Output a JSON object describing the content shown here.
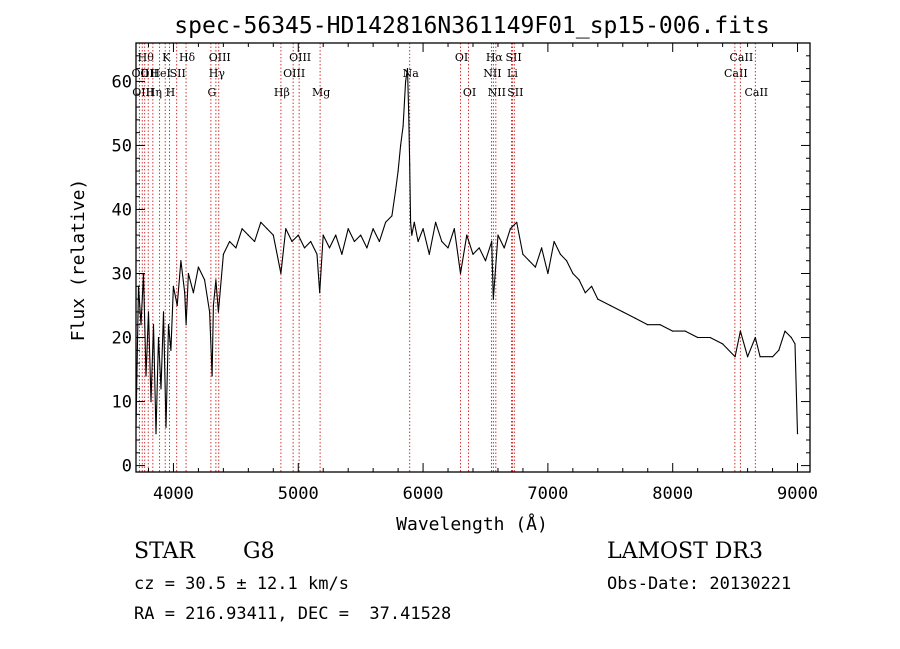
{
  "chart_data": {
    "type": "line",
    "title": "spec-56345-HD142816N361149F01_sp15-006.fits",
    "xlabel": "Wavelength (Å)",
    "ylabel": "Flux (relative)",
    "xlim": [
      3700,
      9100
    ],
    "ylim": [
      -1,
      66
    ],
    "xticks": [
      4000,
      5000,
      6000,
      7000,
      8000,
      9000
    ],
    "yticks": [
      0,
      10,
      20,
      30,
      40,
      50,
      60
    ],
    "series": [
      {
        "name": "flux",
        "x": [
          3700,
          3720,
          3740,
          3760,
          3780,
          3800,
          3820,
          3840,
          3860,
          3880,
          3900,
          3920,
          3940,
          3960,
          3980,
          4000,
          4030,
          4060,
          4090,
          4101,
          4120,
          4160,
          4200,
          4250,
          4290,
          4310,
          4320,
          4340,
          4360,
          4400,
          4450,
          4500,
          4550,
          4600,
          4650,
          4700,
          4750,
          4800,
          4861,
          4900,
          4950,
          5000,
          5050,
          5100,
          5150,
          5172,
          5200,
          5250,
          5300,
          5350,
          5400,
          5450,
          5500,
          5550,
          5600,
          5650,
          5700,
          5750,
          5780,
          5800,
          5820,
          5840,
          5860,
          5875,
          5885,
          5893,
          5900,
          5910,
          5930,
          5960,
          6000,
          6050,
          6100,
          6150,
          6200,
          6250,
          6300,
          6350,
          6400,
          6450,
          6500,
          6550,
          6563,
          6600,
          6650,
          6700,
          6750,
          6800,
          6850,
          6900,
          6950,
          7000,
          7050,
          7100,
          7150,
          7200,
          7250,
          7300,
          7350,
          7400,
          7500,
          7600,
          7700,
          7800,
          7900,
          8000,
          8100,
          8200,
          8300,
          8400,
          8500,
          8542,
          8600,
          8662,
          8700,
          8800,
          8850,
          8900,
          8950,
          8980,
          9000
        ],
        "y": [
          6,
          28,
          22,
          30,
          14,
          24,
          10,
          22,
          5,
          20,
          12,
          24,
          6,
          22,
          18,
          28,
          25,
          32,
          27,
          22,
          30,
          27,
          31,
          29,
          24,
          14,
          25,
          29,
          24,
          33,
          35,
          34,
          37,
          36,
          35,
          38,
          37,
          36,
          30,
          37,
          35,
          36,
          34,
          35,
          33,
          27,
          36,
          34,
          36,
          33,
          37,
          35,
          36,
          34,
          37,
          35,
          38,
          39,
          43,
          46,
          50,
          53,
          60,
          62,
          55,
          47,
          38,
          36,
          38,
          35,
          37,
          33,
          38,
          35,
          34,
          37,
          30,
          36,
          33,
          34,
          32,
          35,
          26,
          36,
          34,
          37,
          38,
          33,
          32,
          31,
          34,
          30,
          35,
          33,
          32,
          30,
          29,
          27,
          28,
          26,
          25,
          24,
          23,
          22,
          22,
          21,
          21,
          20,
          20,
          19,
          17,
          21,
          17,
          20,
          17,
          17,
          18,
          21,
          20,
          19,
          5
        ]
      }
    ],
    "lines": [
      {
        "wl": 3727,
        "row": 2,
        "label": "OII"
      },
      {
        "wl": 3750,
        "row": 3,
        "label": "OIII"
      },
      {
        "wl": 3770,
        "row": 1,
        "label": "Hθ"
      },
      {
        "wl": 3798,
        "row": 2,
        "label": "OII"
      },
      {
        "wl": 3835,
        "row": 3,
        "label": "Hη"
      },
      {
        "wl": 3889,
        "row": 2,
        "label": "HeI"
      },
      {
        "wl": 3934,
        "row": 1,
        "label": "K"
      },
      {
        "wl": 3968,
        "row": 3,
        "label": "H"
      },
      {
        "wl": 4026,
        "row": 2,
        "label": "SII"
      },
      {
        "wl": 4101,
        "row": 1,
        "label": "Hδ"
      },
      {
        "wl": 4300,
        "row": 3,
        "label": "G"
      },
      {
        "wl": 4340,
        "row": 2,
        "label": "Hγ"
      },
      {
        "wl": 4363,
        "row": 1,
        "label": "OIII"
      },
      {
        "wl": 4861,
        "row": 3,
        "label": "Hβ"
      },
      {
        "wl": 4959,
        "row": 2,
        "label": "OIII"
      },
      {
        "wl": 5007,
        "row": 1,
        "label": "OIII"
      },
      {
        "wl": 5175,
        "row": 3,
        "label": "Mg"
      },
      {
        "wl": 5893,
        "row": 2,
        "label": "Na"
      },
      {
        "wl": 6300,
        "row": 1,
        "label": "OI"
      },
      {
        "wl": 6364,
        "row": 3,
        "label": "OI"
      },
      {
        "wl": 6548,
        "row": 2,
        "label": "NII"
      },
      {
        "wl": 6563,
        "row": 1,
        "label": "Hα"
      },
      {
        "wl": 6583,
        "row": 3,
        "label": "NII"
      },
      {
        "wl": 6708,
        "row": 2,
        "label": "Li"
      },
      {
        "wl": 6717,
        "row": 1,
        "label": "SII"
      },
      {
        "wl": 6731,
        "row": 3,
        "label": "SII"
      },
      {
        "wl": 8498,
        "row": 2,
        "label": "CaII"
      },
      {
        "wl": 8542,
        "row": 1,
        "label": "CaII"
      },
      {
        "wl": 8662,
        "row": 3,
        "label": "CaII"
      }
    ]
  },
  "info": {
    "object_class": "STAR",
    "subclass": "G8",
    "survey": "LAMOST DR3",
    "cz": "cz = 30.5 ± 12.1 km/s",
    "obs_date": "Obs-Date: 20130221",
    "coords": "RA = 216.93411, DEC =  37.41528"
  }
}
